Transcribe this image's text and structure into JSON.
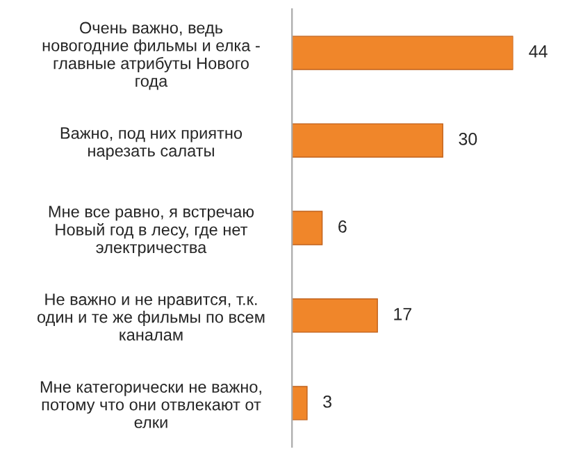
{
  "chart_data": {
    "type": "bar",
    "orientation": "horizontal",
    "data_labels": true,
    "color": "#f0862a",
    "categories": [
      "Очень важно, ведь\nновогодние фильмы и елка -\nглавные атрибуты Нового\nгода",
      "Важно, под них приятно\nнарезать салаты",
      "Мне все равно, я встречаю\nНовый год в лесу, где нет\nэлектричества",
      "Не важно и не нравится, т.к.\nодин и те же фильмы по всем\nканалам",
      "Мне категорически не важно,\nпотому что они отвлекают от\nелки"
    ],
    "values": [
      44,
      30,
      6,
      17,
      3
    ]
  }
}
